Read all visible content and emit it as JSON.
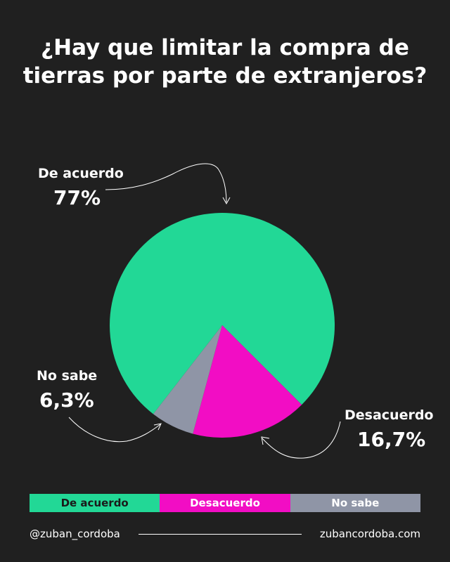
{
  "chart_data": {
    "type": "pie",
    "title": "¿Hay que limitar la compra de tierras por parte de extranjeros?",
    "categories": [
      "De acuerdo",
      "Desacuerdo",
      "No sabe"
    ],
    "values": [
      77,
      16.7,
      6.3
    ],
    "value_labels": [
      "77%",
      "16,7%",
      "6,3%"
    ],
    "colors": [
      "#22d896",
      "#f20dc4",
      "#8f95a6"
    ],
    "legend": "bottom"
  },
  "footer": {
    "handle": "@zuban_cordoba",
    "website": "zubancordoba.com"
  }
}
